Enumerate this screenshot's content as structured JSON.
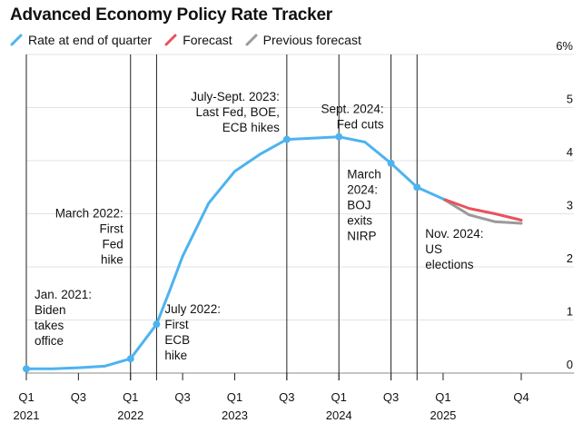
{
  "chart_data": {
    "type": "line",
    "title": "Advanced Economy Policy Rate Tracker",
    "legend": [
      {
        "label": "Rate at end of quarter",
        "color": "#4db3ef"
      },
      {
        "label": "Forecast",
        "color": "#e8525c"
      },
      {
        "label": "Previous forecast",
        "color": "#9a9a9a"
      }
    ],
    "x_ticks": [
      {
        "q": 0,
        "label": "Q1",
        "year": "2021"
      },
      {
        "q": 2,
        "label": "Q3",
        "year": ""
      },
      {
        "q": 4,
        "label": "Q1",
        "year": "2022"
      },
      {
        "q": 6,
        "label": "Q3",
        "year": ""
      },
      {
        "q": 8,
        "label": "Q1",
        "year": "2023"
      },
      {
        "q": 10,
        "label": "Q3",
        "year": ""
      },
      {
        "q": 12,
        "label": "Q1",
        "year": "2024"
      },
      {
        "q": 14,
        "label": "Q3",
        "year": ""
      },
      {
        "q": 16,
        "label": "Q1",
        "year": "2025"
      },
      {
        "q": 19,
        "label": "Q4",
        "year": ""
      }
    ],
    "y_ticks": [
      {
        "value": 0,
        "label": "0"
      },
      {
        "value": 1,
        "label": "1"
      },
      {
        "value": 2,
        "label": "2"
      },
      {
        "value": 3,
        "label": "3"
      },
      {
        "value": 4,
        "label": "4"
      },
      {
        "value": 5,
        "label": "5"
      },
      {
        "value": 6,
        "label": "6%"
      }
    ],
    "ylim": [
      0,
      6
    ],
    "xlim": [
      0,
      19
    ],
    "series": [
      {
        "name": "Rate at end of quarter",
        "color": "#4db3ef",
        "points": [
          {
            "x": 0,
            "y": 0.08
          },
          {
            "x": 1,
            "y": 0.08
          },
          {
            "x": 2,
            "y": 0.1
          },
          {
            "x": 3,
            "y": 0.13
          },
          {
            "x": 4,
            "y": 0.27
          },
          {
            "x": 5,
            "y": 0.92
          },
          {
            "x": 5.5,
            "y": 1.55
          },
          {
            "x": 6,
            "y": 2.2
          },
          {
            "x": 7,
            "y": 3.2
          },
          {
            "x": 8,
            "y": 3.8
          },
          {
            "x": 9,
            "y": 4.13
          },
          {
            "x": 10,
            "y": 4.4
          },
          {
            "x": 12,
            "y": 4.45
          },
          {
            "x": 13,
            "y": 4.35
          },
          {
            "x": 14,
            "y": 3.95
          },
          {
            "x": 15,
            "y": 3.5
          },
          {
            "x": 16,
            "y": 3.28
          }
        ],
        "markers": [
          0,
          4,
          5,
          10,
          12,
          14,
          15
        ]
      },
      {
        "name": "Previous forecast",
        "color": "#9a9a9a",
        "points": [
          {
            "x": 16,
            "y": 3.28
          },
          {
            "x": 17,
            "y": 2.98
          },
          {
            "x": 18,
            "y": 2.85
          },
          {
            "x": 19,
            "y": 2.82
          }
        ]
      },
      {
        "name": "Forecast",
        "color": "#e8525c",
        "points": [
          {
            "x": 16,
            "y": 3.28
          },
          {
            "x": 17,
            "y": 3.1
          },
          {
            "x": 18,
            "y": 3.0
          },
          {
            "x": 19,
            "y": 2.88
          }
        ]
      }
    ],
    "event_lines": [
      0,
      4,
      5,
      10,
      12,
      14,
      15
    ],
    "annotations": [
      {
        "x": 0,
        "y": 1.4,
        "align": "start",
        "lines": [
          "Jan. 2021:",
          "Biden",
          "takes",
          "office"
        ]
      },
      {
        "x": 4,
        "y": 2.93,
        "align": "end",
        "lines": [
          "March 2022:",
          "First",
          "Fed",
          "hike"
        ]
      },
      {
        "x": 5,
        "y": 1.13,
        "align": "start",
        "lines": [
          "July 2022:",
          "First",
          "ECB",
          "hike"
        ]
      },
      {
        "x": 10,
        "y": 5.13,
        "align": "end",
        "lines": [
          "July-Sept. 2023:",
          "Last Fed, BOE,",
          "ECB hikes"
        ]
      },
      {
        "x": 14,
        "y": 4.9,
        "align": "end",
        "lines": [
          "Sept. 2024:",
          "Fed cuts"
        ]
      },
      {
        "x": 12,
        "y": 3.67,
        "align": "start",
        "lines": [
          "March",
          "2024:",
          "BOJ",
          "exits",
          "NIRP"
        ]
      },
      {
        "x": 15,
        "y": 2.55,
        "align": "start",
        "lines": [
          "Nov. 2024:",
          "US",
          "elections"
        ]
      }
    ]
  }
}
